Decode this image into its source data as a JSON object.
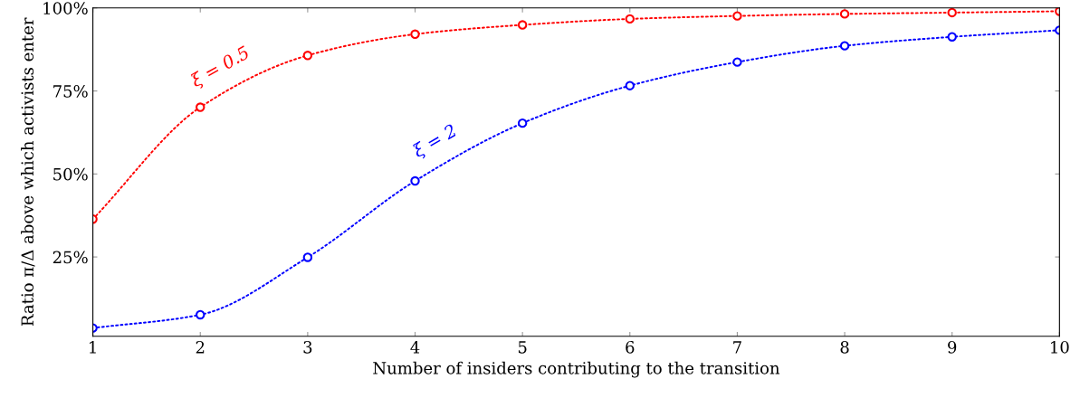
{
  "chart_data": {
    "type": "line",
    "xlabel": "Number of insiders contributing to the transition",
    "ylabel": "Ratio π/Δ above which activists enter",
    "x": [
      1,
      2,
      3,
      4,
      5,
      6,
      7,
      8,
      9,
      10
    ],
    "series": [
      {
        "name": "ξ = 0.5",
        "color": "#ff0000",
        "values": [
          36.4,
          70.1,
          85.7,
          92.1,
          94.9,
          96.7,
          97.6,
          98.2,
          98.6,
          99.0
        ]
      },
      {
        "name": "ξ = 2",
        "color": "#0000ff",
        "values": [
          3.6,
          7.6,
          24.9,
          47.9,
          65.3,
          76.6,
          83.7,
          88.6,
          91.3,
          93.3
        ]
      }
    ],
    "xlim": [
      1,
      10
    ],
    "xticks": [
      1,
      2,
      3,
      4,
      5,
      6,
      7,
      8,
      9,
      10
    ],
    "ylim": [
      1.1,
      100
    ],
    "yticks": [
      {
        "value": 25,
        "label": "25%"
      },
      {
        "value": 50,
        "label": "50%"
      },
      {
        "value": 75,
        "label": "75%"
      },
      {
        "value": 100,
        "label": "100%"
      }
    ],
    "marker": "circle",
    "line_style": "dotted",
    "grid": false,
    "legend": false
  }
}
